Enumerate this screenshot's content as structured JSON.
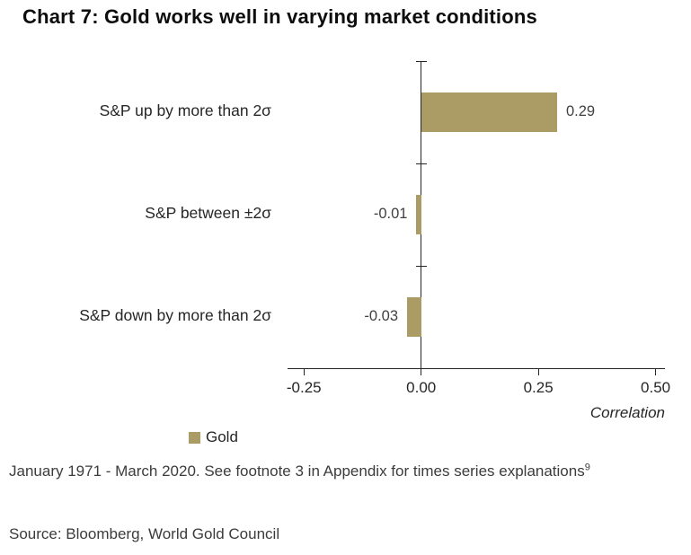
{
  "title": "Chart 7: Gold works well in varying market conditions",
  "chart_data": {
    "type": "bar",
    "orientation": "horizontal",
    "categories": [
      "S&P up by more than 2σ",
      "S&P between ±2σ",
      "S&P down by more than 2σ"
    ],
    "series": [
      {
        "name": "Gold",
        "values": [
          0.29,
          -0.01,
          -0.03
        ]
      }
    ],
    "value_labels": [
      "0.29",
      "-0.01",
      "-0.03"
    ],
    "xlabel": "Correlation",
    "xlim": [
      -0.25,
      0.5
    ],
    "xticks": [
      -0.25,
      0.0,
      0.25,
      0.5
    ],
    "xtick_labels": [
      "-0.25",
      "0.00",
      "0.25",
      "0.50"
    ],
    "legend": [
      {
        "label": "Gold",
        "color": "#ab9b64"
      }
    ],
    "bar_color": "#ab9b64",
    "grid": false,
    "legend_position": "bottom-left"
  },
  "footnote": {
    "line": "January 1971 - March 2020. See footnote 3 in Appendix for times series explanations",
    "superscript": "9"
  },
  "source": "Source: Bloomberg, World Gold Council",
  "colors": {
    "bar": "#ab9b64",
    "axis": "#262626",
    "text": "#262626",
    "footnote_text": "#3c3c3c"
  }
}
